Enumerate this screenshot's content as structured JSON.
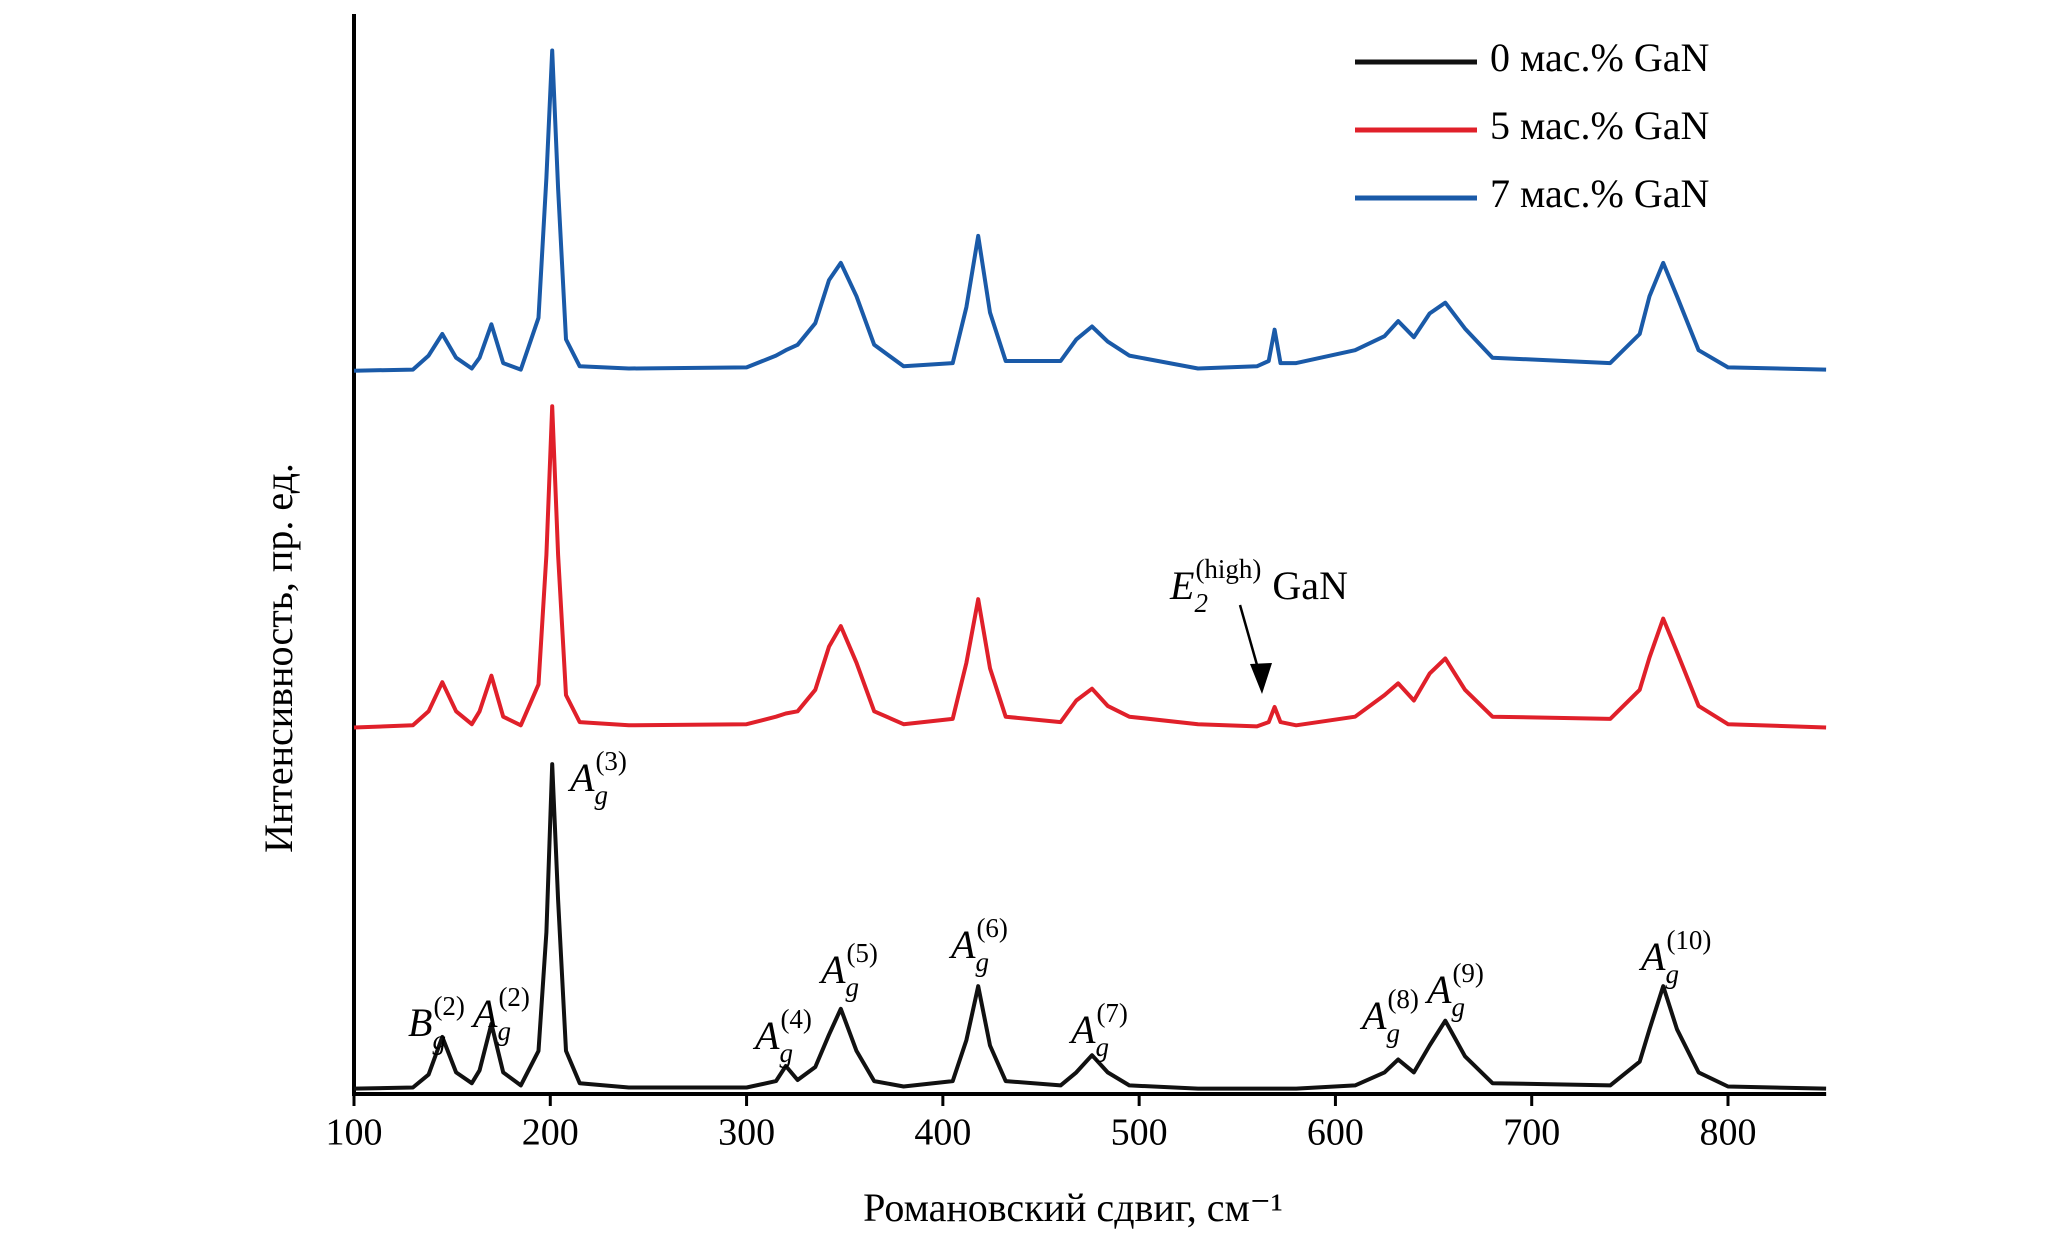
{
  "chart_data": {
    "type": "line",
    "x_label": "Романовский сдвиг, см⁻¹",
    "y_label": "Интенсивность, пр. ед.",
    "xlim": [
      100,
      850
    ],
    "ylim": [
      0,
      100
    ],
    "xticks": [
      100,
      200,
      300,
      400,
      500,
      600,
      700,
      800
    ],
    "legend": "upper right",
    "x": [
      100,
      130,
      138,
      145,
      152,
      160,
      164,
      170,
      176,
      185,
      194,
      198,
      201,
      204,
      208,
      215,
      240,
      300,
      315,
      320,
      326,
      335,
      342,
      348,
      356,
      365,
      380,
      405,
      412,
      418,
      424,
      432,
      460,
      468,
      476,
      484,
      495,
      530,
      560,
      566,
      569,
      572,
      580,
      610,
      625,
      632,
      640,
      648,
      656,
      666,
      680,
      740,
      755,
      760,
      767,
      774,
      785,
      800,
      850
    ],
    "series": [
      {
        "name": "0 мас.% GaN",
        "color": "#111111",
        "values": [
          0.5,
          0.6,
          1.8,
          5.3,
          2.0,
          1.0,
          2.2,
          6.5,
          2.0,
          0.8,
          4,
          15,
          30.6,
          18,
          4,
          1,
          0.6,
          0.6,
          1.2,
          2.6,
          1.3,
          2.5,
          5.5,
          7.9,
          4,
          1.2,
          0.7,
          1.2,
          5,
          10,
          4.5,
          1.2,
          0.8,
          2,
          3.6,
          2,
          0.8,
          0.5,
          0.5,
          0.5,
          0.5,
          0.5,
          0.5,
          0.8,
          2,
          3.2,
          2,
          4.5,
          6.8,
          3.5,
          1,
          0.8,
          3,
          6,
          10,
          6,
          2,
          0.7,
          0.5
        ]
      },
      {
        "name": "5 мас.% GaN",
        "color": "#e0202a",
        "values": [
          34,
          34.2,
          35.5,
          38.2,
          35.5,
          34.3,
          35.5,
          38.8,
          35,
          34.2,
          38,
          50,
          63.8,
          50,
          37,
          34.5,
          34.2,
          34.3,
          35,
          35.3,
          35.5,
          37.5,
          41.5,
          43.4,
          40,
          35.5,
          34.3,
          34.8,
          40,
          45.9,
          39.5,
          35,
          34.5,
          36.5,
          37.6,
          36,
          35,
          34.3,
          34.1,
          34.5,
          35.9,
          34.5,
          34.2,
          35,
          37,
          38.1,
          36.5,
          39,
          40.4,
          37.5,
          35,
          34.8,
          37.5,
          40.5,
          44.1,
          41,
          36,
          34.3,
          34
        ]
      },
      {
        "name": "7 мас.% GaN",
        "color": "#1a5aa8",
        "values": [
          67.1,
          67.2,
          68.5,
          70.5,
          68.3,
          67.3,
          68.3,
          71.4,
          67.8,
          67.2,
          72,
          85,
          96.8,
          84,
          70,
          67.5,
          67.3,
          67.4,
          68.5,
          69,
          69.5,
          71.5,
          75.5,
          77.1,
          74,
          69.5,
          67.5,
          67.8,
          73,
          79.6,
          72.5,
          68,
          68,
          70,
          71.2,
          69.8,
          68.5,
          67.3,
          67.5,
          68,
          70.9,
          67.8,
          67.8,
          69,
          70.3,
          71.7,
          70.2,
          72.4,
          73.4,
          71,
          68.3,
          67.8,
          70.5,
          74,
          77.1,
          74,
          69,
          67.4,
          67.2
        ]
      }
    ],
    "annotations": [
      {
        "base": "B",
        "sub": "g",
        "sup": "(2)"
      },
      {
        "base": "A",
        "sub": "g",
        "sup": "(2)"
      },
      {
        "base": "A",
        "sub": "g",
        "sup": "(3)"
      },
      {
        "base": "A",
        "sub": "g",
        "sup": "(4)"
      },
      {
        "base": "A",
        "sub": "g",
        "sup": "(5)"
      },
      {
        "base": "A",
        "sub": "g",
        "sup": "(6)"
      },
      {
        "base": "A",
        "sub": "g",
        "sup": "(7)"
      },
      {
        "base": "A",
        "sub": "g",
        "sup": "(8)"
      },
      {
        "base": "A",
        "sub": "g",
        "sup": "(9)"
      },
      {
        "base": "A",
        "sub": "g",
        "sup": "(10)"
      },
      {
        "base": "E",
        "sub": "2",
        "sup": "(high)",
        "text": "GaN"
      }
    ]
  }
}
